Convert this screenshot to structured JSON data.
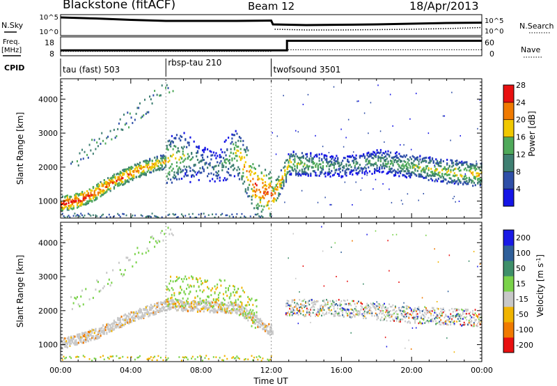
{
  "header": {
    "station": "Blackstone (fitACF)",
    "beam": "Beam 12",
    "date": "18/Apr/2013"
  },
  "strip_labels": {
    "nsky": "N.Sky",
    "nsearch": "N.Search",
    "freq_line1": "Freq.",
    "freq_line2": "[MHz]",
    "nave": "Nave",
    "cpid": "CPID"
  },
  "chart_data": [
    {
      "type": "line",
      "panel": "noise",
      "ylabel_left": "N.Sky",
      "ylabel_right": "N.Search",
      "ytick_labels_left": [
        "10^5",
        "10^0"
      ],
      "ytick_labels_right": [
        "10^5",
        "10^0"
      ],
      "log_scale": true,
      "series": [
        {
          "name": "N.Sky",
          "x_hours": [
            0,
            2,
            4,
            6,
            8,
            10,
            12,
            12.1,
            14,
            16,
            18,
            20,
            22,
            24
          ],
          "log10_values": [
            4.6,
            4.3,
            3.9,
            3.6,
            3.6,
            3.6,
            3.7,
            2.6,
            2.4,
            2.5,
            2.6,
            2.8,
            3.0,
            3.1
          ]
        },
        {
          "name": "N.Search",
          "x_hours": [
            12.2,
            14,
            16,
            18,
            20,
            22,
            24
          ],
          "log10_values": [
            1.2,
            1.0,
            1.0,
            1.1,
            1.2,
            1.4,
            1.7
          ]
        }
      ]
    },
    {
      "type": "line",
      "panel": "frequency",
      "ylabel_left": "Freq. [MHz]",
      "ylabel_right": "Nave",
      "ytick_labels_left": [
        "18",
        "8"
      ],
      "ytick_labels_right": [
        "60",
        "0"
      ],
      "series": [
        {
          "name": "Freq.",
          "x_hours": [
            0,
            12.9,
            12.9,
            24
          ],
          "values_mhz": [
            10.5,
            10.5,
            16.5,
            16.5
          ]
        },
        {
          "name": "Nave",
          "x_hours": [
            0,
            12.0,
            12.0,
            24
          ],
          "values": [
            11,
            11,
            17,
            17
          ]
        }
      ]
    },
    {
      "type": "table",
      "panel": "cpid",
      "label": "CPID",
      "segments": [
        {
          "start_hour": 0,
          "end_hour": 6,
          "name": "tau (fast) 503"
        },
        {
          "start_hour": 6,
          "end_hour": 12,
          "name": "rbsp-tau 210"
        },
        {
          "start_hour": 12,
          "end_hour": 24,
          "name": "twofsound 3501"
        }
      ]
    },
    {
      "type": "heatmap",
      "panel": "power",
      "xlabel": "",
      "ylabel": "Slant Range [km]",
      "xlim_hours": [
        0,
        24
      ],
      "ylim_km": [
        500,
        4600
      ],
      "y_ticks_km": [
        1000,
        2000,
        3000,
        4000
      ],
      "colorbar": {
        "label": "Power [dB]",
        "ticks": [
          4,
          8,
          12,
          16,
          20,
          24,
          28
        ],
        "colors": [
          "#1515e6",
          "#2f4fa8",
          "#3f7f72",
          "#4fa95a",
          "#f0c800",
          "#f07a00",
          "#e81010"
        ]
      },
      "features": [
        {
          "name": "main band",
          "x_hours": [
            0,
            1,
            2,
            3,
            4,
            5,
            6,
            7,
            8,
            9,
            10,
            11,
            12.1,
            13,
            14,
            16,
            18,
            20,
            22,
            24
          ],
          "center_km": [
            950,
            1050,
            1300,
            1600,
            1850,
            2050,
            2200,
            2350,
            2150,
            2000,
            2500,
            1500,
            1150,
            2150,
            2100,
            2050,
            2200,
            2050,
            1900,
            1800
          ],
          "power_db": [
            28,
            28,
            27,
            26,
            26,
            24,
            22,
            18,
            12,
            12,
            20,
            26,
            26,
            20,
            18,
            14,
            16,
            18,
            20,
            22
          ]
        },
        {
          "name": "upper streaks",
          "x_hours": [
            1,
            2,
            3,
            4,
            5,
            6
          ],
          "center_km": [
            2300,
            2700,
            3100,
            3500,
            3900,
            4300
          ],
          "power_db": [
            10,
            12,
            14,
            12,
            10,
            10
          ]
        },
        {
          "name": "ground scatter strip",
          "x_hours": [
            0,
            6,
            10,
            12
          ],
          "center_km": [
            600,
            600,
            600,
            600
          ],
          "power_db": [
            8,
            10,
            10,
            8
          ]
        }
      ]
    },
    {
      "type": "heatmap",
      "panel": "velocity",
      "xlabel": "Time UT",
      "ylabel": "Slant Range [km]",
      "xlim_hours": [
        0,
        24
      ],
      "ylim_km": [
        500,
        4600
      ],
      "y_ticks_km": [
        1000,
        2000,
        3000,
        4000
      ],
      "x_tick_labels": [
        "00:00",
        "04:00",
        "08:00",
        "12:00",
        "16:00",
        "20:00",
        "00:00"
      ],
      "colorbar": {
        "label": "Velocity [m s^-1]",
        "ticks": [
          200,
          100,
          50,
          15,
          -15,
          -50,
          -100,
          -200
        ],
        "colors": [
          "#1a1ae6",
          "#2f5f9a",
          "#3f8f6a",
          "#7ad24a",
          "#c8c8c8",
          "#f0b400",
          "#f07a00",
          "#e81010"
        ]
      },
      "features": [
        {
          "name": "ground scatter band",
          "x_hours": [
            0,
            2,
            4,
            6,
            8,
            10,
            12.1
          ],
          "center_km": [
            1050,
            1350,
            1850,
            2200,
            2150,
            2100,
            1400
          ],
          "velocity_class": "-15..15"
        },
        {
          "name": "ionospheric scatter",
          "x_hours": [
            6,
            8,
            10,
            11
          ],
          "center_km": [
            2600,
            2600,
            2400,
            1900
          ],
          "velocity_class": "15..50"
        },
        {
          "name": "mixed late band",
          "x_hours": [
            13,
            16,
            20,
            24
          ],
          "center_km": [
            2100,
            2100,
            1900,
            1800
          ],
          "velocity_class": "mixed"
        }
      ]
    }
  ]
}
